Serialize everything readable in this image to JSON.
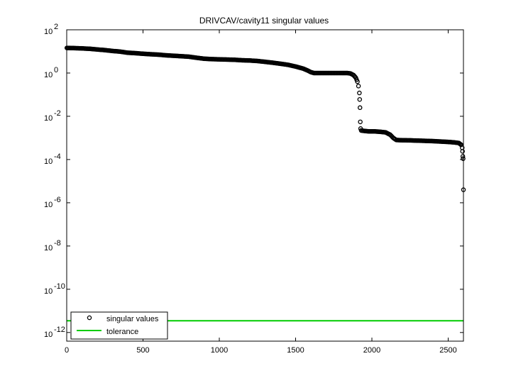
{
  "chart_data": {
    "type": "scatter",
    "title": "DRIVCAV/cavity11 singular values",
    "xlabel": "",
    "ylabel": "",
    "xlim": [
      0,
      2600
    ],
    "ylim_log10": [
      -12.4,
      2
    ],
    "y_scale": "log",
    "grid": false,
    "legend_position": "bottom-left",
    "x_ticks": [
      0,
      500,
      1000,
      1500,
      2000,
      2500
    ],
    "x_tick_labels": [
      "0",
      "500",
      "1000",
      "1500",
      "2000",
      "2500"
    ],
    "y_ticks_log10": [
      2,
      0,
      -2,
      -4,
      -6,
      -8,
      -10,
      -12
    ],
    "y_tick_labels": [
      {
        "base": "10",
        "exp": "2"
      },
      {
        "base": "10",
        "exp": "0"
      },
      {
        "base": "10",
        "exp": "-2"
      },
      {
        "base": "10",
        "exp": "-4"
      },
      {
        "base": "10",
        "exp": "-6"
      },
      {
        "base": "10",
        "exp": "-8"
      },
      {
        "base": "10",
        "exp": "-10"
      },
      {
        "base": "10",
        "exp": "-12"
      }
    ],
    "series": [
      {
        "name": "singular values",
        "marker": "circle-open",
        "color": "#000000",
        "points": [
          [
            1,
            14.5
          ],
          [
            50,
            14.2
          ],
          [
            100,
            13.8
          ],
          [
            150,
            13.2
          ],
          [
            200,
            12.3
          ],
          [
            250,
            11.5
          ],
          [
            300,
            10.5
          ],
          [
            350,
            9.8
          ],
          [
            400,
            8.7
          ],
          [
            450,
            8.3
          ],
          [
            500,
            7.8
          ],
          [
            550,
            7.4
          ],
          [
            600,
            7.1
          ],
          [
            650,
            6.6
          ],
          [
            700,
            6.3
          ],
          [
            750,
            6.0
          ],
          [
            800,
            5.7
          ],
          [
            850,
            5.1
          ],
          [
            900,
            4.6
          ],
          [
            950,
            4.4
          ],
          [
            1000,
            4.3
          ],
          [
            1050,
            4.2
          ],
          [
            1100,
            4.1
          ],
          [
            1150,
            3.9
          ],
          [
            1200,
            3.8
          ],
          [
            1250,
            3.6
          ],
          [
            1300,
            3.3
          ],
          [
            1350,
            3.0
          ],
          [
            1400,
            2.7
          ],
          [
            1450,
            2.4
          ],
          [
            1500,
            2.0
          ],
          [
            1550,
            1.6
          ],
          [
            1580,
            1.3
          ],
          [
            1600,
            1.1
          ],
          [
            1620,
            1.0
          ],
          [
            1650,
            1.0
          ],
          [
            1700,
            1.0
          ],
          [
            1750,
            1.0
          ],
          [
            1800,
            1.0
          ],
          [
            1840,
            1.0
          ],
          [
            1860,
            0.95
          ],
          [
            1880,
            0.8
          ],
          [
            1895,
            0.6
          ],
          [
            1905,
            0.4
          ],
          [
            1912,
            0.25
          ],
          [
            1918,
            0.12
          ],
          [
            1920,
            0.06
          ],
          [
            1922,
            0.025
          ],
          [
            1924,
            0.0055
          ],
          [
            1926,
            0.0027
          ],
          [
            1930,
            0.0022
          ],
          [
            1950,
            0.0021
          ],
          [
            1980,
            0.002
          ],
          [
            2020,
            0.002
          ],
          [
            2060,
            0.0019
          ],
          [
            2090,
            0.0018
          ],
          [
            2120,
            0.0014
          ],
          [
            2140,
            0.001
          ],
          [
            2160,
            0.0008
          ],
          [
            2200,
            0.00078
          ],
          [
            2250,
            0.00077
          ],
          [
            2300,
            0.00075
          ],
          [
            2350,
            0.00073
          ],
          [
            2400,
            0.00071
          ],
          [
            2450,
            0.00068
          ],
          [
            2500,
            0.00065
          ],
          [
            2540,
            0.00062
          ],
          [
            2570,
            0.00058
          ],
          [
            2585,
            0.00048
          ],
          [
            2592,
            0.00035
          ],
          [
            2594,
            0.00024
          ],
          [
            2596,
            0.00014
          ],
          [
            2598,
            0.00011
          ],
          [
            2600,
            4e-06
          ]
        ]
      },
      {
        "name": "tolerance",
        "type": "line",
        "color": "#00cc00",
        "x": [
          0,
          2600
        ],
        "y": [
          3.5e-12,
          3.5e-12
        ]
      }
    ]
  }
}
